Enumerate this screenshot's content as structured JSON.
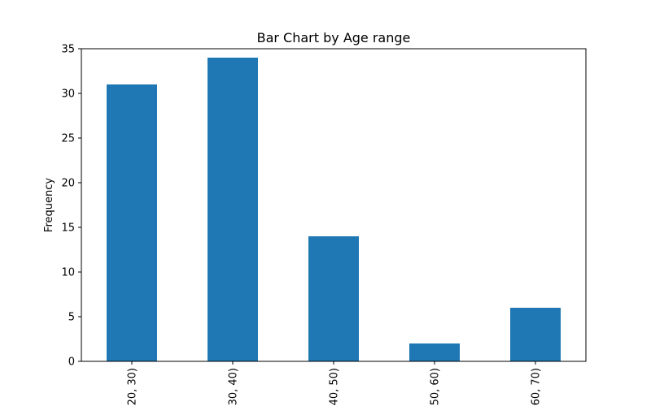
{
  "chart_data": {
    "type": "bar",
    "title": "Bar Chart by Age range",
    "xlabel": "",
    "ylabel": "Frequency",
    "categories": [
      "[20, 30)",
      "[30, 40)",
      "[40, 50)",
      "[50, 60)",
      "[60, 70)"
    ],
    "values": [
      31,
      34,
      14,
      2,
      6
    ],
    "ylim": [
      0,
      35
    ],
    "yticks": [
      0,
      5,
      10,
      15,
      20,
      25,
      30,
      35
    ],
    "grid": false,
    "legend": "none",
    "bar_color": "#1f77b4",
    "x_tick_rotation": "vertical"
  }
}
